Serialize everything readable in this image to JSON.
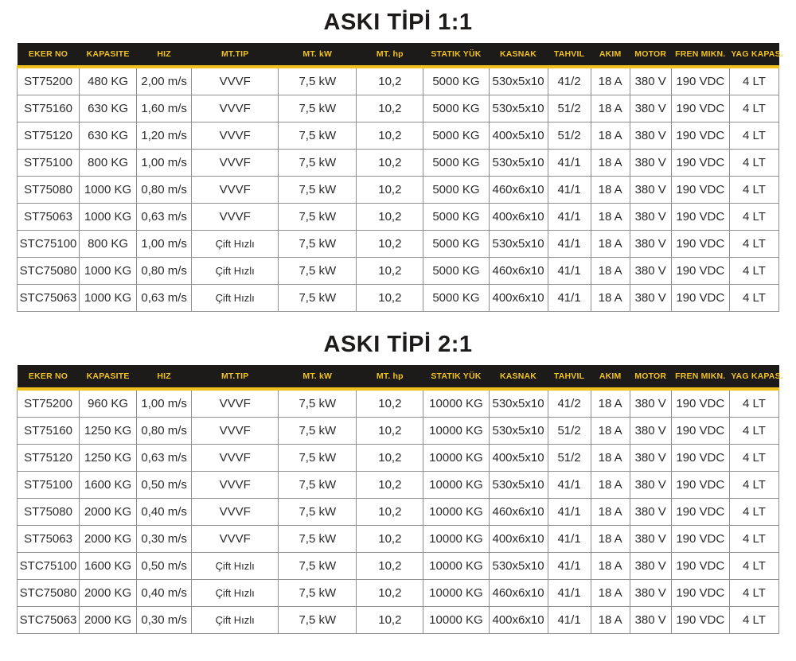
{
  "colors": {
    "header_bg": "#1d1b1a",
    "header_text": "#f0c11c",
    "accent_strip": "#f0c11c",
    "cell_border": "#8f8f8f",
    "body_text": "#2b2b2b",
    "title_text": "#1d1b1a",
    "page_bg": "#ffffff"
  },
  "tables": [
    {
      "title": "ASKI TİPİ 1:1",
      "columns": [
        "EKER NO",
        "KAPASITE",
        "HIZ",
        "MT.TIP",
        "MT. kW",
        "MT. hp",
        "STATIK YÜK",
        "KASNAK",
        "TAHVIL",
        "AKIM",
        "MOTOR",
        "FREN MIKN.",
        "YAG KAPAS."
      ],
      "rows": [
        [
          "ST75200",
          "480 KG",
          "2,00 m/s",
          "VVVF",
          "7,5 kW",
          "10,2",
          "5000 KG",
          "530x5x10",
          "41/2",
          "18 A",
          "380 V",
          "190 VDC",
          "4 LT"
        ],
        [
          "ST75160",
          "630 KG",
          "1,60 m/s",
          "VVVF",
          "7,5 kW",
          "10,2",
          "5000 KG",
          "530x5x10",
          "51/2",
          "18 A",
          "380 V",
          "190 VDC",
          "4 LT"
        ],
        [
          "ST75120",
          "630 KG",
          "1,20 m/s",
          "VVVF",
          "7,5 kW",
          "10,2",
          "5000 KG",
          "400x5x10",
          "51/2",
          "18 A",
          "380 V",
          "190 VDC",
          "4 LT"
        ],
        [
          "ST75100",
          "800 KG",
          "1,00 m/s",
          "VVVF",
          "7,5 kW",
          "10,2",
          "5000 KG",
          "530x5x10",
          "41/1",
          "18 A",
          "380 V",
          "190 VDC",
          "4 LT"
        ],
        [
          "ST75080",
          "1000 KG",
          "0,80 m/s",
          "VVVF",
          "7,5 kW",
          "10,2",
          "5000 KG",
          "460x6x10",
          "41/1",
          "18 A",
          "380 V",
          "190 VDC",
          "4 LT"
        ],
        [
          "ST75063",
          "1000 KG",
          "0,63 m/s",
          "VVVF",
          "7,5 kW",
          "10,2",
          "5000 KG",
          "400x6x10",
          "41/1",
          "18 A",
          "380 V",
          "190 VDC",
          "4 LT"
        ],
        [
          "STC75100",
          "800 KG",
          "1,00 m/s",
          "Çift Hızlı",
          "7,5 kW",
          "10,2",
          "5000 KG",
          "530x5x10",
          "41/1",
          "18 A",
          "380 V",
          "190 VDC",
          "4 LT"
        ],
        [
          "STC75080",
          "1000 KG",
          "0,80 m/s",
          "Çift Hızlı",
          "7,5 kW",
          "10,2",
          "5000 KG",
          "460x6x10",
          "41/1",
          "18 A",
          "380 V",
          "190 VDC",
          "4 LT"
        ],
        [
          "STC75063",
          "1000 KG",
          "0,63 m/s",
          "Çift Hızlı",
          "7,5 kW",
          "10,2",
          "5000 KG",
          "400x6x10",
          "41/1",
          "18 A",
          "380 V",
          "190 VDC",
          "4 LT"
        ]
      ]
    },
    {
      "title": "ASKI TİPİ 2:1",
      "columns": [
        "EKER NO",
        "KAPASITE",
        "HIZ",
        "MT.TIP",
        "MT. kW",
        "MT. hp",
        "STATIK YÜK",
        "KASNAK",
        "TAHVIL",
        "AKIM",
        "MOTOR",
        "FREN MIKN.",
        "YAG KAPAS."
      ],
      "rows": [
        [
          "ST75200",
          "960 KG",
          "1,00 m/s",
          "VVVF",
          "7,5 kW",
          "10,2",
          "10000 KG",
          "530x5x10",
          "41/2",
          "18 A",
          "380 V",
          "190 VDC",
          "4 LT"
        ],
        [
          "ST75160",
          "1250 KG",
          "0,80 m/s",
          "VVVF",
          "7,5 kW",
          "10,2",
          "10000 KG",
          "530x5x10",
          "51/2",
          "18 A",
          "380 V",
          "190 VDC",
          "4 LT"
        ],
        [
          "ST75120",
          "1250 KG",
          "0,63 m/s",
          "VVVF",
          "7,5 kW",
          "10,2",
          "10000 KG",
          "400x5x10",
          "51/2",
          "18 A",
          "380 V",
          "190 VDC",
          "4 LT"
        ],
        [
          "ST75100",
          "1600 KG",
          "0,50 m/s",
          "VVVF",
          "7,5 kW",
          "10,2",
          "10000 KG",
          "530x5x10",
          "41/1",
          "18 A",
          "380 V",
          "190 VDC",
          "4 LT"
        ],
        [
          "ST75080",
          "2000 KG",
          "0,40 m/s",
          "VVVF",
          "7,5 kW",
          "10,2",
          "10000 KG",
          "460x6x10",
          "41/1",
          "18 A",
          "380 V",
          "190 VDC",
          "4 LT"
        ],
        [
          "ST75063",
          "2000 KG",
          "0,30 m/s",
          "VVVF",
          "7,5 kW",
          "10,2",
          "10000 KG",
          "400x6x10",
          "41/1",
          "18 A",
          "380 V",
          "190 VDC",
          "4 LT"
        ],
        [
          "STC75100",
          "1600 KG",
          "0,50 m/s",
          "Çift Hızlı",
          "7,5 kW",
          "10,2",
          "10000 KG",
          "530x5x10",
          "41/1",
          "18 A",
          "380 V",
          "190 VDC",
          "4 LT"
        ],
        [
          "STC75080",
          "2000 KG",
          "0,40 m/s",
          "Çift Hızlı",
          "7,5 kW",
          "10,2",
          "10000 KG",
          "460x6x10",
          "41/1",
          "18 A",
          "380 V",
          "190 VDC",
          "4 LT"
        ],
        [
          "STC75063",
          "2000 KG",
          "0,30 m/s",
          "Çift Hızlı",
          "7,5 kW",
          "10,2",
          "10000 KG",
          "400x6x10",
          "41/1",
          "18 A",
          "380 V",
          "190 VDC",
          "4 LT"
        ]
      ]
    }
  ]
}
